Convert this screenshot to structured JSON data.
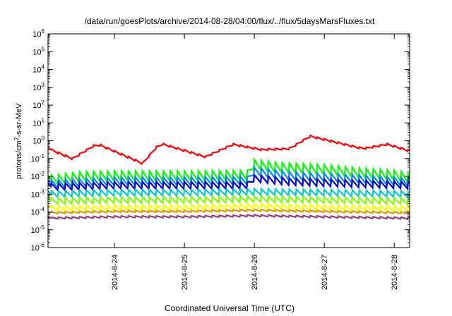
{
  "chart_data": {
    "type": "line",
    "title": "/data/run/goesPlots/archive/2014-08-28/04:00/flux/../flux/5daysMarsFluxes.txt",
    "xlabel": "Coordinated Universal Time (UTC)",
    "ylabel": {
      "pre": "protons/cm",
      "sup": "2",
      "post": "-s-sr-MeV"
    },
    "yscale": "log",
    "ylim_exp": [
      -6,
      6
    ],
    "ytick_exps": [
      -6,
      -5,
      -4,
      -3,
      -2,
      -1,
      0,
      1,
      2,
      3,
      4,
      5,
      6
    ],
    "xlim_days": [
      23.05,
      28.22
    ],
    "x_ticks": [
      {
        "label": "2014-8-24",
        "day": 24
      },
      {
        "label": "2014-8-25",
        "day": 25
      },
      {
        "label": "2014-8-26",
        "day": 26
      },
      {
        "label": "2014-8-27",
        "day": 27
      },
      {
        "label": "2014-8-28",
        "day": 28
      }
    ],
    "grid": false,
    "legend": "none",
    "sawtooth_period_days": 0.1,
    "series": [
      {
        "color": "#ff0000",
        "drop": 0.1,
        "anchors": [
          [
            23.05,
            0.4
          ],
          [
            23.4,
            0.11
          ],
          [
            23.75,
            0.75
          ],
          [
            24.4,
            0.06
          ],
          [
            24.65,
            0.8
          ],
          [
            25.3,
            0.14
          ],
          [
            25.7,
            0.7
          ],
          [
            26.1,
            0.35
          ],
          [
            26.5,
            0.4
          ],
          [
            26.8,
            2.0
          ],
          [
            27.55,
            0.4
          ],
          [
            27.9,
            0.7
          ],
          [
            28.22,
            0.3
          ]
        ]
      },
      {
        "color": "#00ff00",
        "drop": 0.55,
        "anchors": [
          [
            23.05,
            0.011
          ],
          [
            23.5,
            0.018
          ],
          [
            24.0,
            0.02
          ],
          [
            25.0,
            0.02
          ],
          [
            25.9,
            0.022
          ],
          [
            25.91,
            0.1
          ],
          [
            26.3,
            0.06
          ],
          [
            27.0,
            0.045
          ],
          [
            27.5,
            0.03
          ],
          [
            28.0,
            0.022
          ],
          [
            28.22,
            0.015
          ]
        ]
      },
      {
        "color": "#0088ff",
        "drop": 0.45,
        "anchors": [
          [
            23.05,
            0.006
          ],
          [
            24.0,
            0.009
          ],
          [
            25.0,
            0.009
          ],
          [
            25.9,
            0.01
          ],
          [
            25.91,
            0.035
          ],
          [
            26.5,
            0.018
          ],
          [
            27.5,
            0.012
          ],
          [
            28.22,
            0.008
          ]
        ]
      },
      {
        "color": "#0000dd",
        "drop": 0.4,
        "anchors": [
          [
            23.05,
            0.004
          ],
          [
            24.0,
            0.005
          ],
          [
            25.0,
            0.005
          ],
          [
            25.9,
            0.005
          ],
          [
            25.91,
            0.013
          ],
          [
            26.5,
            0.008
          ],
          [
            27.5,
            0.006
          ],
          [
            28.22,
            0.005
          ]
        ]
      },
      {
        "color": "#00cccc",
        "drop": 0.35,
        "anchors": [
          [
            23.05,
            0.0015
          ],
          [
            24.0,
            0.0018
          ],
          [
            25.0,
            0.0018
          ],
          [
            26.0,
            0.002
          ],
          [
            27.0,
            0.0018
          ],
          [
            28.22,
            0.0015
          ]
        ]
      },
      {
        "color": "#7fff00",
        "drop": 0.35,
        "anchors": [
          [
            23.05,
            0.0006
          ],
          [
            24.0,
            0.0007
          ],
          [
            25.0,
            0.0007
          ],
          [
            26.0,
            0.0008
          ],
          [
            27.0,
            0.0007
          ],
          [
            28.22,
            0.0006
          ]
        ]
      },
      {
        "color": "#ffff00",
        "drop": 0.3,
        "anchors": [
          [
            23.05,
            0.00022
          ],
          [
            24.0,
            0.00025
          ],
          [
            25.0,
            0.00025
          ],
          [
            26.0,
            0.0003
          ],
          [
            27.0,
            0.00025
          ],
          [
            28.22,
            0.00022
          ]
        ]
      },
      {
        "color": "#dd9900",
        "drop": 0.1,
        "anchors": [
          [
            23.05,
            0.0001
          ],
          [
            24.0,
            0.00012
          ],
          [
            25.0,
            0.00012
          ],
          [
            26.0,
            0.00014
          ],
          [
            27.0,
            0.00012
          ],
          [
            28.22,
            0.0001
          ]
        ]
      },
      {
        "color": "#9b3a7a",
        "drop": 0.1,
        "anchors": [
          [
            23.05,
            5e-05
          ],
          [
            24.0,
            6e-05
          ],
          [
            25.0,
            6e-05
          ],
          [
            26.0,
            7e-05
          ],
          [
            27.0,
            6e-05
          ],
          [
            28.22,
            5e-05
          ]
        ]
      }
    ]
  }
}
